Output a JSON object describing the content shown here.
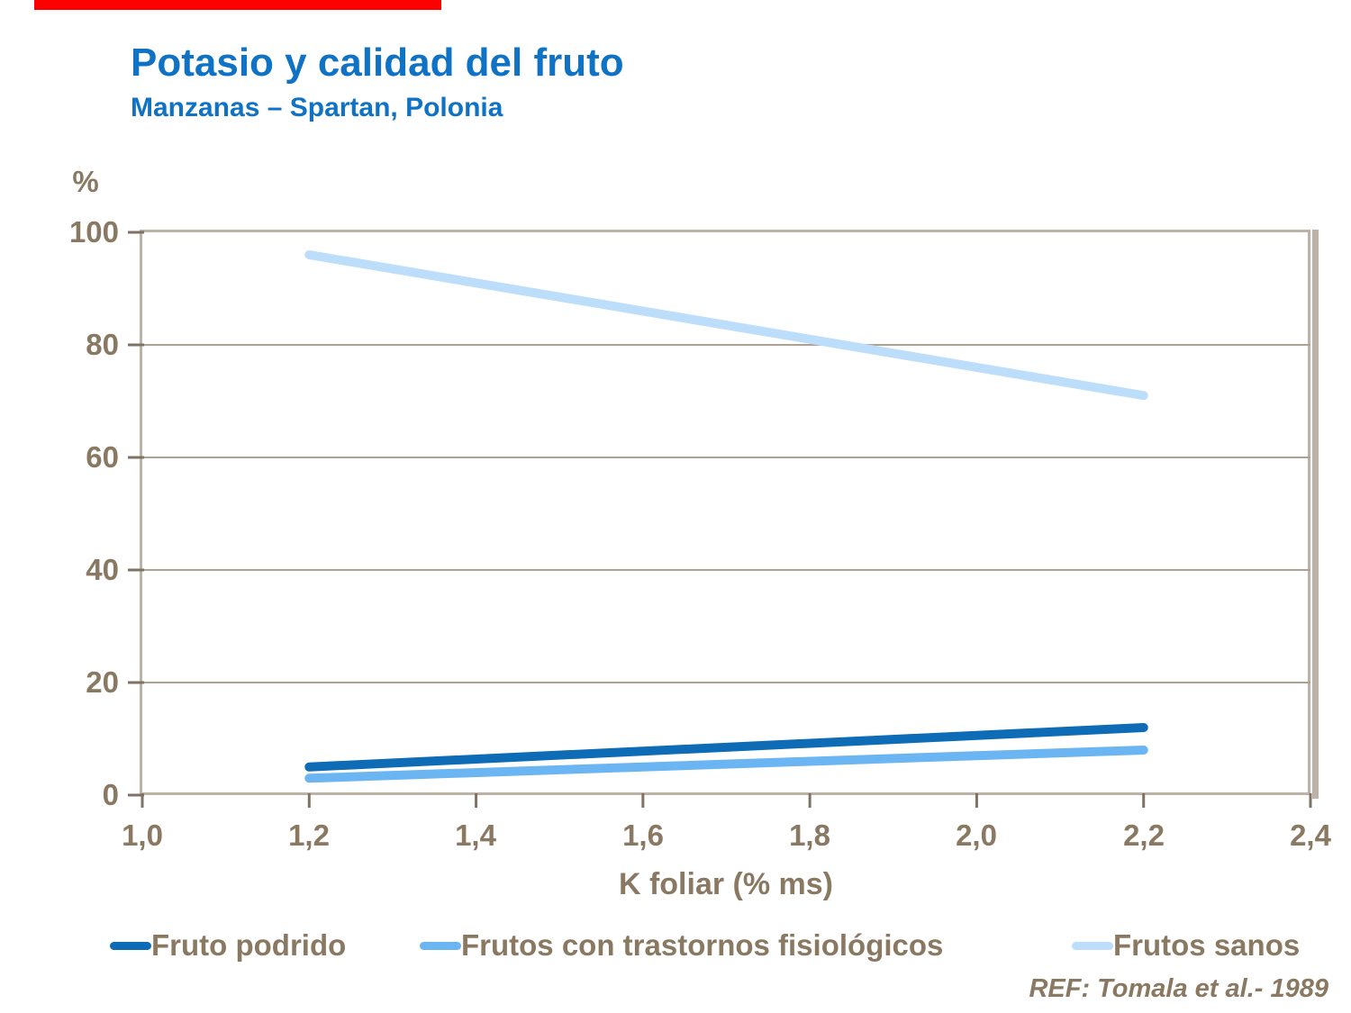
{
  "colors": {
    "accent_red": "#FE0000",
    "title_blue": "#0F72C4",
    "axis_text": "#8A7962",
    "frame": "#BDB2A6",
    "gridline": "#ACA293",
    "tick": "#7E7264"
  },
  "header": {
    "title": "Potasio y calidad del fruto",
    "subtitle": "Manzanas – Spartan, Polonia"
  },
  "footer": {
    "reference": "REF: Tomala et al.- 1989"
  },
  "chart_data": {
    "type": "line",
    "title": "Potasio y calidad del fruto",
    "subtitle": "Manzanas – Spartan, Polonia",
    "xlabel": "K foliar (% ms)",
    "ylabel": "%",
    "xlim": [
      1.0,
      2.4
    ],
    "ylim": [
      0,
      100
    ],
    "xticks": [
      "1,0",
      "1,2",
      "1,4",
      "1,6",
      "1,8",
      "2,0",
      "2,2",
      "2,4"
    ],
    "xtick_values": [
      1.0,
      1.2,
      1.4,
      1.6,
      1.8,
      2.0,
      2.2,
      2.4
    ],
    "yticks": [
      "100",
      "80",
      "60",
      "40",
      "20",
      "0"
    ],
    "ytick_values": [
      100,
      80,
      60,
      40,
      20,
      0
    ],
    "grid": "horizontal",
    "legend_position": "bottom",
    "x": [
      1.2,
      2.2
    ],
    "series": [
      {
        "name": "Fruto podrido",
        "values": [
          5,
          12
        ],
        "color": "#0E6BB6"
      },
      {
        "name": "Frutos con trastornos fisiológicos",
        "values": [
          3,
          8
        ],
        "color": "#6BB5F2"
      },
      {
        "name": "Frutos sanos",
        "values": [
          96,
          71
        ],
        "color": "#BCDEFA"
      }
    ]
  }
}
